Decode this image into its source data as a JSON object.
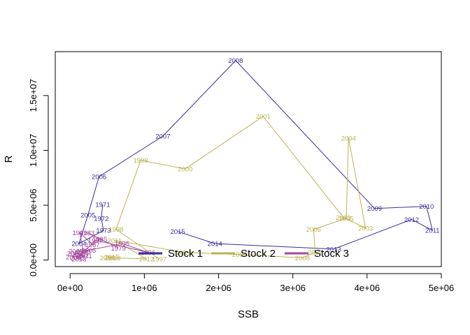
{
  "chart_data": {
    "type": "line",
    "title": "",
    "xlabel": "SSB",
    "ylabel": "R",
    "xlim": [
      -200000,
      5000000
    ],
    "ylim": [
      -600000,
      19000000
    ],
    "x_ticks": [
      0,
      1000000,
      2000000,
      3000000,
      4000000,
      5000000
    ],
    "x_tick_labels": [
      "0e+00",
      "1e+06",
      "2e+06",
      "3e+06",
      "4e+06",
      "5e+06"
    ],
    "y_ticks": [
      0,
      5000000,
      10000000,
      15000000
    ],
    "y_tick_labels": [
      "0.0e+00",
      "5.0e+06",
      "1.0e+07",
      "1.5e+07"
    ],
    "grid": false,
    "legend_position": "bottom-center",
    "series": [
      {
        "name": "Stock 1",
        "color": "#3b2d96",
        "points": [
          {
            "year": "1971",
            "x": 440000,
            "y": 5050000
          },
          {
            "year": "1972",
            "x": 420000,
            "y": 3800000
          },
          {
            "year": "1973",
            "x": 450000,
            "y": 2700000
          },
          {
            "year": "2004",
            "x": 120000,
            "y": 1500000
          },
          {
            "year": "2005",
            "x": 240000,
            "y": 4100000
          },
          {
            "year": "2006",
            "x": 390000,
            "y": 7600000
          },
          {
            "year": "2007",
            "x": 1250000,
            "y": 11300000
          },
          {
            "year": "2008",
            "x": 2230000,
            "y": 18200000
          },
          {
            "year": "2009",
            "x": 4100000,
            "y": 4700000
          },
          {
            "year": "2010",
            "x": 4800000,
            "y": 4900000
          },
          {
            "year": "2011",
            "x": 4880000,
            "y": 2700000
          },
          {
            "year": "2012",
            "x": 4600000,
            "y": 3700000
          },
          {
            "year": "2013",
            "x": 3550000,
            "y": 1000000
          },
          {
            "year": "2014",
            "x": 1950000,
            "y": 1500000
          },
          {
            "year": "2015",
            "x": 1450000,
            "y": 2600000
          }
        ]
      },
      {
        "name": "Stock 2",
        "color": "#bdb353",
        "points": [
          {
            "year": "1997",
            "x": 1200000,
            "y": 100000
          },
          {
            "year": "1998",
            "x": 620000,
            "y": 2800000
          },
          {
            "year": "1999",
            "x": 950000,
            "y": 9100000
          },
          {
            "year": "2000",
            "x": 1550000,
            "y": 8300000
          },
          {
            "year": "2001",
            "x": 2600000,
            "y": 13100000
          },
          {
            "year": "2002",
            "x": 3680000,
            "y": 3900000
          },
          {
            "year": "2003",
            "x": 3980000,
            "y": 2900000
          },
          {
            "year": "2004",
            "x": 3750000,
            "y": 11100000
          },
          {
            "year": "2005",
            "x": 3720000,
            "y": 3800000
          },
          {
            "year": "2006",
            "x": 3280000,
            "y": 2800000
          },
          {
            "year": "2007",
            "x": 3300000,
            "y": 700000
          },
          {
            "year": "2008",
            "x": 3130000,
            "y": 200000
          },
          {
            "year": "2009",
            "x": 2280000,
            "y": 500000
          },
          {
            "year": "2010",
            "x": 1530000,
            "y": 700000
          },
          {
            "year": "2011",
            "x": 600000,
            "y": 1800000
          },
          {
            "year": "2012",
            "x": 1030000,
            "y": 100000
          },
          {
            "year": "2013",
            "x": 580000,
            "y": 200000
          },
          {
            "year": "2014",
            "x": 500000,
            "y": 200000
          },
          {
            "year": "2015",
            "x": 560000,
            "y": 300000
          }
        ]
      },
      {
        "name": "Stock 3",
        "color": "#a4489b",
        "points": [
          {
            "year": "1979",
            "x": 650000,
            "y": 1100000
          },
          {
            "year": "1983",
            "x": 230000,
            "y": 2500000
          },
          {
            "year": "1985",
            "x": 400000,
            "y": 1900000
          },
          {
            "year": "1987",
            "x": 300000,
            "y": 1400000
          },
          {
            "year": "1991",
            "x": 130000,
            "y": 2500000
          },
          {
            "year": "1993",
            "x": 180000,
            "y": 800000
          },
          {
            "year": "1995",
            "x": 700000,
            "y": 1500000
          },
          {
            "year": "1996",
            "x": 1050000,
            "y": 700000
          },
          {
            "year": "1997",
            "x": 340000,
            "y": 1800000
          },
          {
            "year": "1999",
            "x": 150000,
            "y": 500000
          },
          {
            "year": "2001",
            "x": 60000,
            "y": 600000
          },
          {
            "year": "2003",
            "x": 100000,
            "y": 200000
          },
          {
            "year": "2005",
            "x": 250000,
            "y": 900000
          },
          {
            "year": "2007",
            "x": 80000,
            "y": 800000
          },
          {
            "year": "2009",
            "x": 40000,
            "y": 300000
          },
          {
            "year": "2011",
            "x": 200000,
            "y": 400000
          },
          {
            "year": "2013",
            "x": 120000,
            "y": 100000
          }
        ]
      }
    ]
  }
}
